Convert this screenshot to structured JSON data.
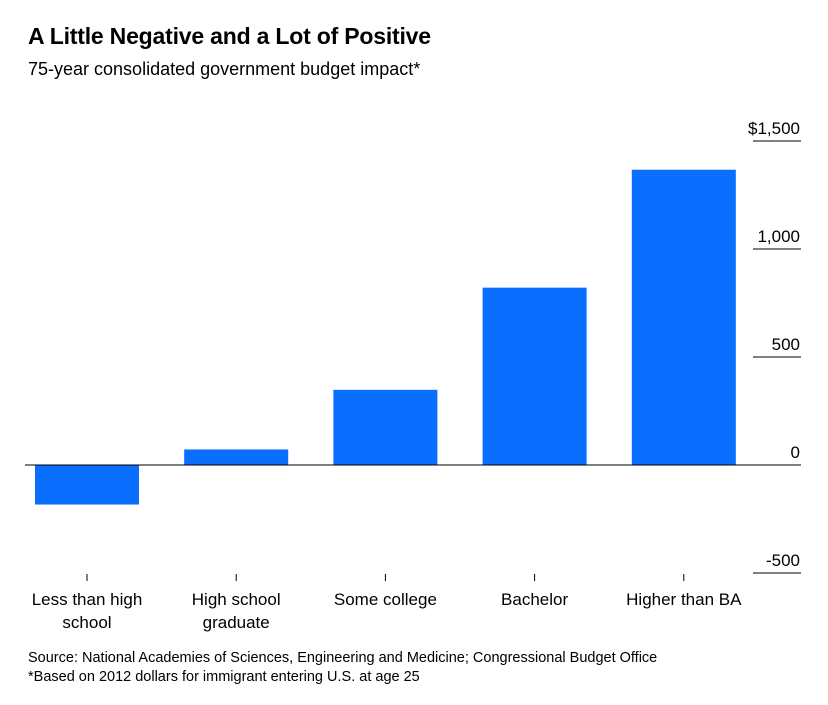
{
  "header": {
    "title": "A Little Negative and a Lot of Positive",
    "subtitle": "75-year consolidated government budget impact*"
  },
  "footer": {
    "source": "Source: National Academies of Sciences, Engineering and Medicine; Congressional Budget Office",
    "note": "*Based on 2012 dollars for immigrant entering U.S. at age 25"
  },
  "colors": {
    "bar": "#0A6EFF",
    "axis": "#000000",
    "text": "#000000"
  },
  "chart_data": {
    "type": "bar",
    "categories": [
      [
        "Less than high",
        "school"
      ],
      [
        "High school",
        "graduate"
      ],
      [
        "Some college"
      ],
      [
        "Bachelor"
      ],
      [
        "Higher than BA"
      ]
    ],
    "values": [
      -183,
      72,
      348,
      821,
      1367
    ],
    "ylim": [
      -500,
      1500
    ],
    "yticks": [
      {
        "value": 1500,
        "label": "$1,500"
      },
      {
        "value": 1000,
        "label": "1,000"
      },
      {
        "value": 500,
        "label": "500"
      },
      {
        "value": 0,
        "label": "0"
      },
      {
        "value": -500,
        "label": "-500"
      }
    ],
    "grid": false,
    "legend": "none"
  }
}
